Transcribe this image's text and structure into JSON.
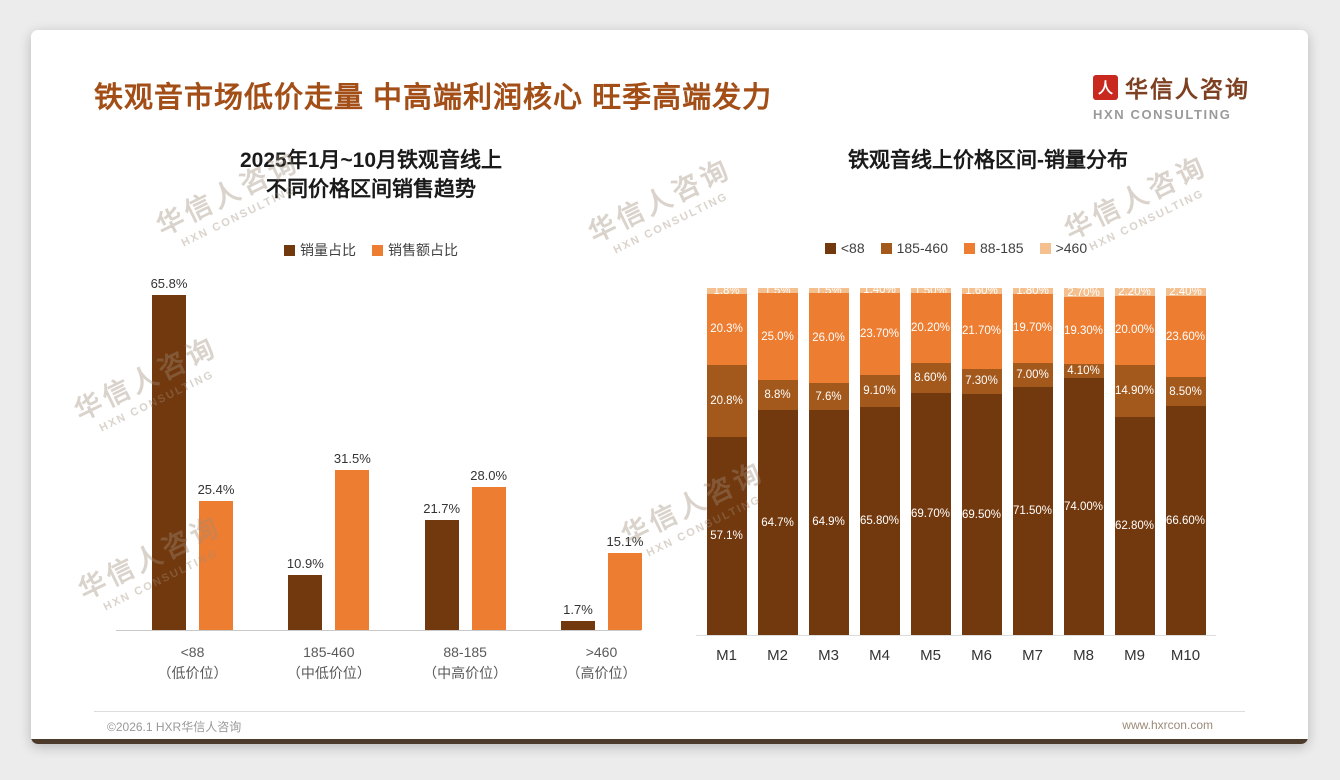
{
  "page": {
    "title": "铁观音市场低价走量 中高端利润核心 旺季高端发力",
    "footer_left": "©2026.1 HXR华信人咨询",
    "footer_right": "www.hxrcon.com"
  },
  "logo": {
    "name": "华信人咨询",
    "subtitle": "HXN CONSULTING",
    "mark_glyph": "人",
    "mark_color": "#C8281E"
  },
  "watermark": {
    "line1": "华信人咨询",
    "line2": "HXN CONSULTING"
  },
  "colors": {
    "title": "#A24E16",
    "dark_brown": "#73390E",
    "mid_brown": "#A4591C",
    "orange": "#ED7D31",
    "peach": "#F4C08F"
  },
  "chart_data": [
    {
      "type": "bar",
      "title": "2025年1月~10月铁观音线上 不同价格区间销售趋势",
      "title_lines": [
        "2025年1月~10月铁观音线上",
        "不同价格区间销售趋势"
      ],
      "xlabel": "",
      "ylabel": "",
      "ylim": [
        0,
        70
      ],
      "grid": false,
      "legend_position": "top",
      "categories": [
        {
          "line1": "<88",
          "line2": "（低价位）"
        },
        {
          "line1": "185-460",
          "line2": "（中低价位）"
        },
        {
          "line1": "88-185",
          "line2": "（中高价位）"
        },
        {
          "line1": ">460",
          "line2": "（高价位）"
        }
      ],
      "series": [
        {
          "name": "销量占比",
          "color": "#73390E",
          "values": [
            65.8,
            10.9,
            21.7,
            1.7
          ],
          "labels": [
            "65.8%",
            "10.9%",
            "21.7%",
            "1.7%"
          ]
        },
        {
          "name": "销售额占比",
          "color": "#ED7D31",
          "values": [
            25.4,
            31.5,
            28.0,
            15.1
          ],
          "labels": [
            "25.4%",
            "31.5%",
            "28.0%",
            "15.1%"
          ]
        }
      ]
    },
    {
      "type": "bar",
      "subtype": "stacked-100",
      "title": "铁观音线上价格区间-销量分布",
      "xlabel": "",
      "ylabel": "",
      "ylim": [
        0,
        100
      ],
      "grid": false,
      "legend_position": "top",
      "categories": [
        "M1",
        "M2",
        "M3",
        "M4",
        "M5",
        "M6",
        "M7",
        "M8",
        "M9",
        "M10"
      ],
      "series": [
        {
          "name": "<88",
          "color": "#73390E",
          "values": [
            57.1,
            64.7,
            64.9,
            65.8,
            69.7,
            69.5,
            71.5,
            74.0,
            62.8,
            66.6
          ],
          "labels": [
            "57.1%",
            "64.7%",
            "64.9%",
            "65.80%",
            "69.70%",
            "69.50%",
            "71.50%",
            "74.00%",
            "62.80%",
            "66.60%"
          ]
        },
        {
          "name": "185-460",
          "color": "#A4591C",
          "values": [
            20.8,
            8.8,
            7.6,
            9.1,
            8.6,
            7.3,
            7.0,
            4.1,
            14.9,
            8.5
          ],
          "labels": [
            "20.8%",
            "8.8%",
            "7.6%",
            "9.10%",
            "8.60%",
            "7.30%",
            "7.00%",
            "4.10%",
            "14.90%",
            "8.50%"
          ]
        },
        {
          "name": "88-185",
          "color": "#ED7D31",
          "values": [
            20.3,
            25.0,
            26.0,
            23.7,
            20.2,
            21.7,
            19.7,
            19.3,
            20.0,
            23.6
          ],
          "labels": [
            "20.3%",
            "25.0%",
            "26.0%",
            "23.70%",
            "20.20%",
            "21.70%",
            "19.70%",
            "19.30%",
            "20.00%",
            "23.60%"
          ]
        },
        {
          "name": ">460",
          "color": "#F4C08F",
          "values": [
            1.8,
            1.5,
            1.5,
            1.4,
            1.5,
            1.6,
            1.8,
            2.7,
            2.2,
            2.4
          ],
          "labels": [
            "1.8%",
            "1.5%",
            "1.5%",
            "1.40%",
            "1.50%",
            "1.60%",
            "1.80%",
            "2.70%",
            "2.20%",
            "2.40%"
          ]
        }
      ]
    }
  ]
}
